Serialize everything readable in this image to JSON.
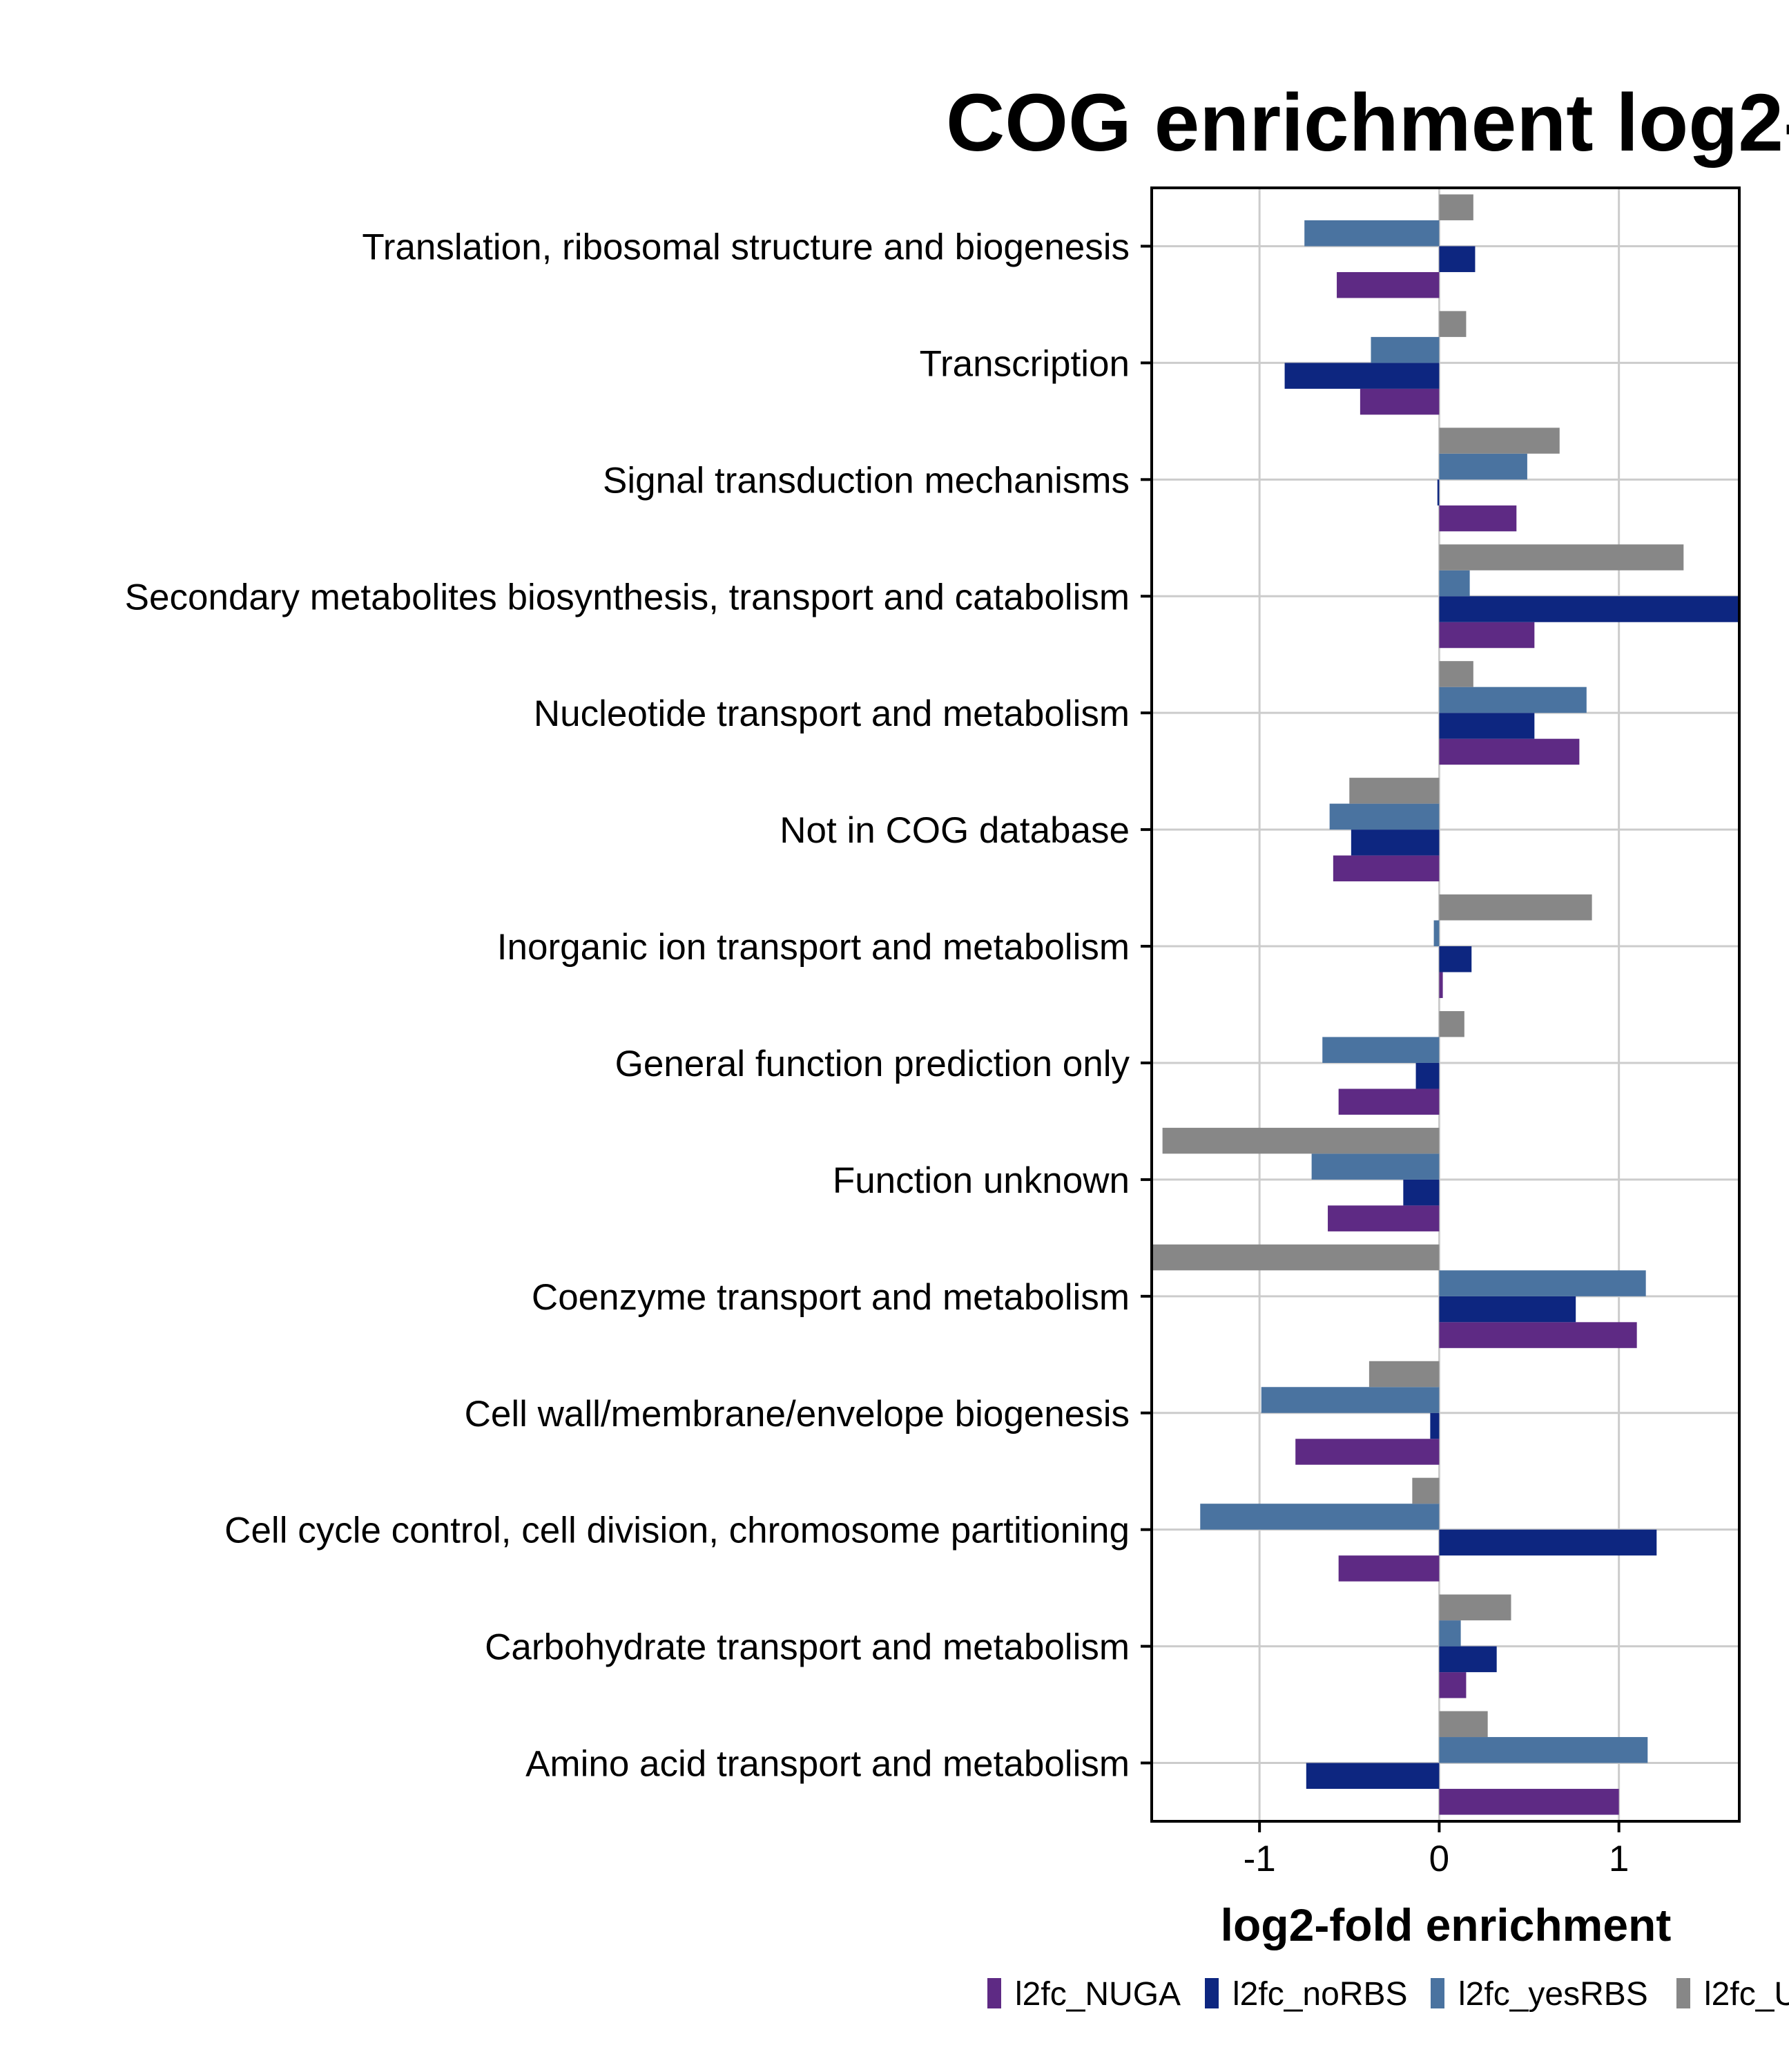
{
  "chart_data": {
    "type": "bar",
    "orientation": "horizontal",
    "title": "COG enrichment log2-",
    "xlabel": "log2-fold enrichment",
    "ylabel": "",
    "xlim": [
      -1.6,
      1.67
    ],
    "xticks": [
      -1,
      0,
      1
    ],
    "xtick_labels": [
      "-1",
      "0",
      "1"
    ],
    "grid": true,
    "legend_position": "bottom",
    "categories": [
      "Translation, ribosomal structure and biogenesis",
      "Transcription",
      "Signal transduction mechanisms",
      "Secondary metabolites biosynthesis, transport and catabolism",
      "Nucleotide transport and metabolism",
      "Not in COG database",
      "Inorganic ion transport and metabolism",
      "General function prediction only",
      "Function unknown",
      "Coenzyme transport and metabolism",
      "Cell wall/membrane/envelope biogenesis",
      "Cell cycle control, cell division, chromosome partitioning",
      "Carbohydrate transport and metabolism",
      "Amino acid transport and metabolism"
    ],
    "series": [
      {
        "name": "l2fc_NUGA",
        "color": "#5e2a84",
        "values": [
          -0.57,
          -0.44,
          0.43,
          0.53,
          0.78,
          -0.59,
          0.02,
          -0.56,
          -0.62,
          1.1,
          -0.8,
          -0.56,
          0.15,
          1.0
        ]
      },
      {
        "name": "l2fc_noRBS",
        "color": "#0d2680",
        "values": [
          0.2,
          -0.86,
          -0.01,
          1.7,
          0.53,
          -0.49,
          0.18,
          -0.13,
          -0.2,
          0.76,
          -0.05,
          1.21,
          0.32,
          -0.74
        ]
      },
      {
        "name": "l2fc_yesRBS",
        "color": "#4a73a0",
        "values": [
          -0.75,
          -0.38,
          0.49,
          0.17,
          0.82,
          -0.61,
          -0.03,
          -0.65,
          -0.71,
          1.15,
          -0.99,
          -1.33,
          0.12,
          1.16
        ]
      },
      {
        "name": "l2fc_U",
        "color": "#878787",
        "values": [
          0.19,
          0.15,
          0.67,
          1.36,
          0.19,
          -0.5,
          0.85,
          0.14,
          -1.54,
          -1.65,
          -0.39,
          -0.15,
          0.4,
          0.27
        ]
      }
    ],
    "legend_labels": [
      "l2fc_NUGA",
      "l2fc_noRBS",
      "l2fc_yesRBS",
      "l2fc_U"
    ]
  }
}
